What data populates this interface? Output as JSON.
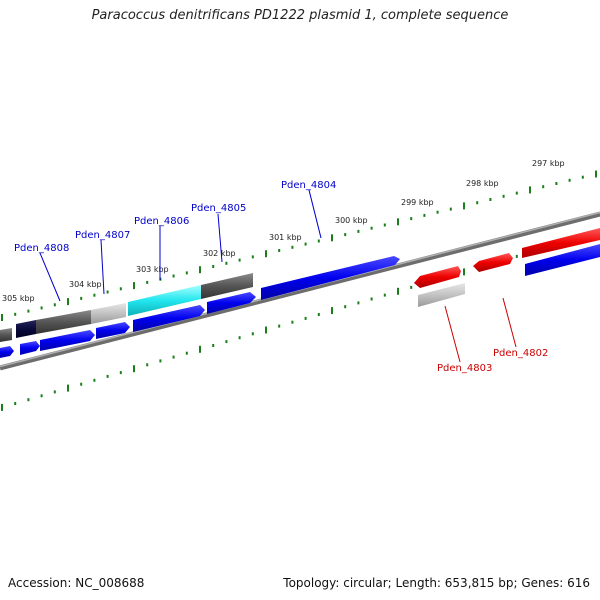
{
  "title": "Paracoccus denitrificans PD1222 plasmid 1, complete sequence",
  "accession": "Accession: NC_008688",
  "summary": "Topology: circular; Length: 653,815 bp; Genes: 616",
  "scale_labels": [
    "297 kbp",
    "298 kbp",
    "299 kbp",
    "300 kbp",
    "301 kbp",
    "302 kbp",
    "303 kbp",
    "304 kbp",
    "305 kbp"
  ],
  "gene_labels_forward": [
    "Pden_4804",
    "Pden_4805",
    "Pden_4806",
    "Pden_4807",
    "Pden_4808"
  ],
  "gene_labels_reverse": [
    "Pden_4802",
    "Pden_4803"
  ],
  "colors": {
    "forward_label": "#0000cc",
    "reverse_label": "#cc0000",
    "tick": "#1a7f1a",
    "backbone": "#8a8a8a"
  }
}
